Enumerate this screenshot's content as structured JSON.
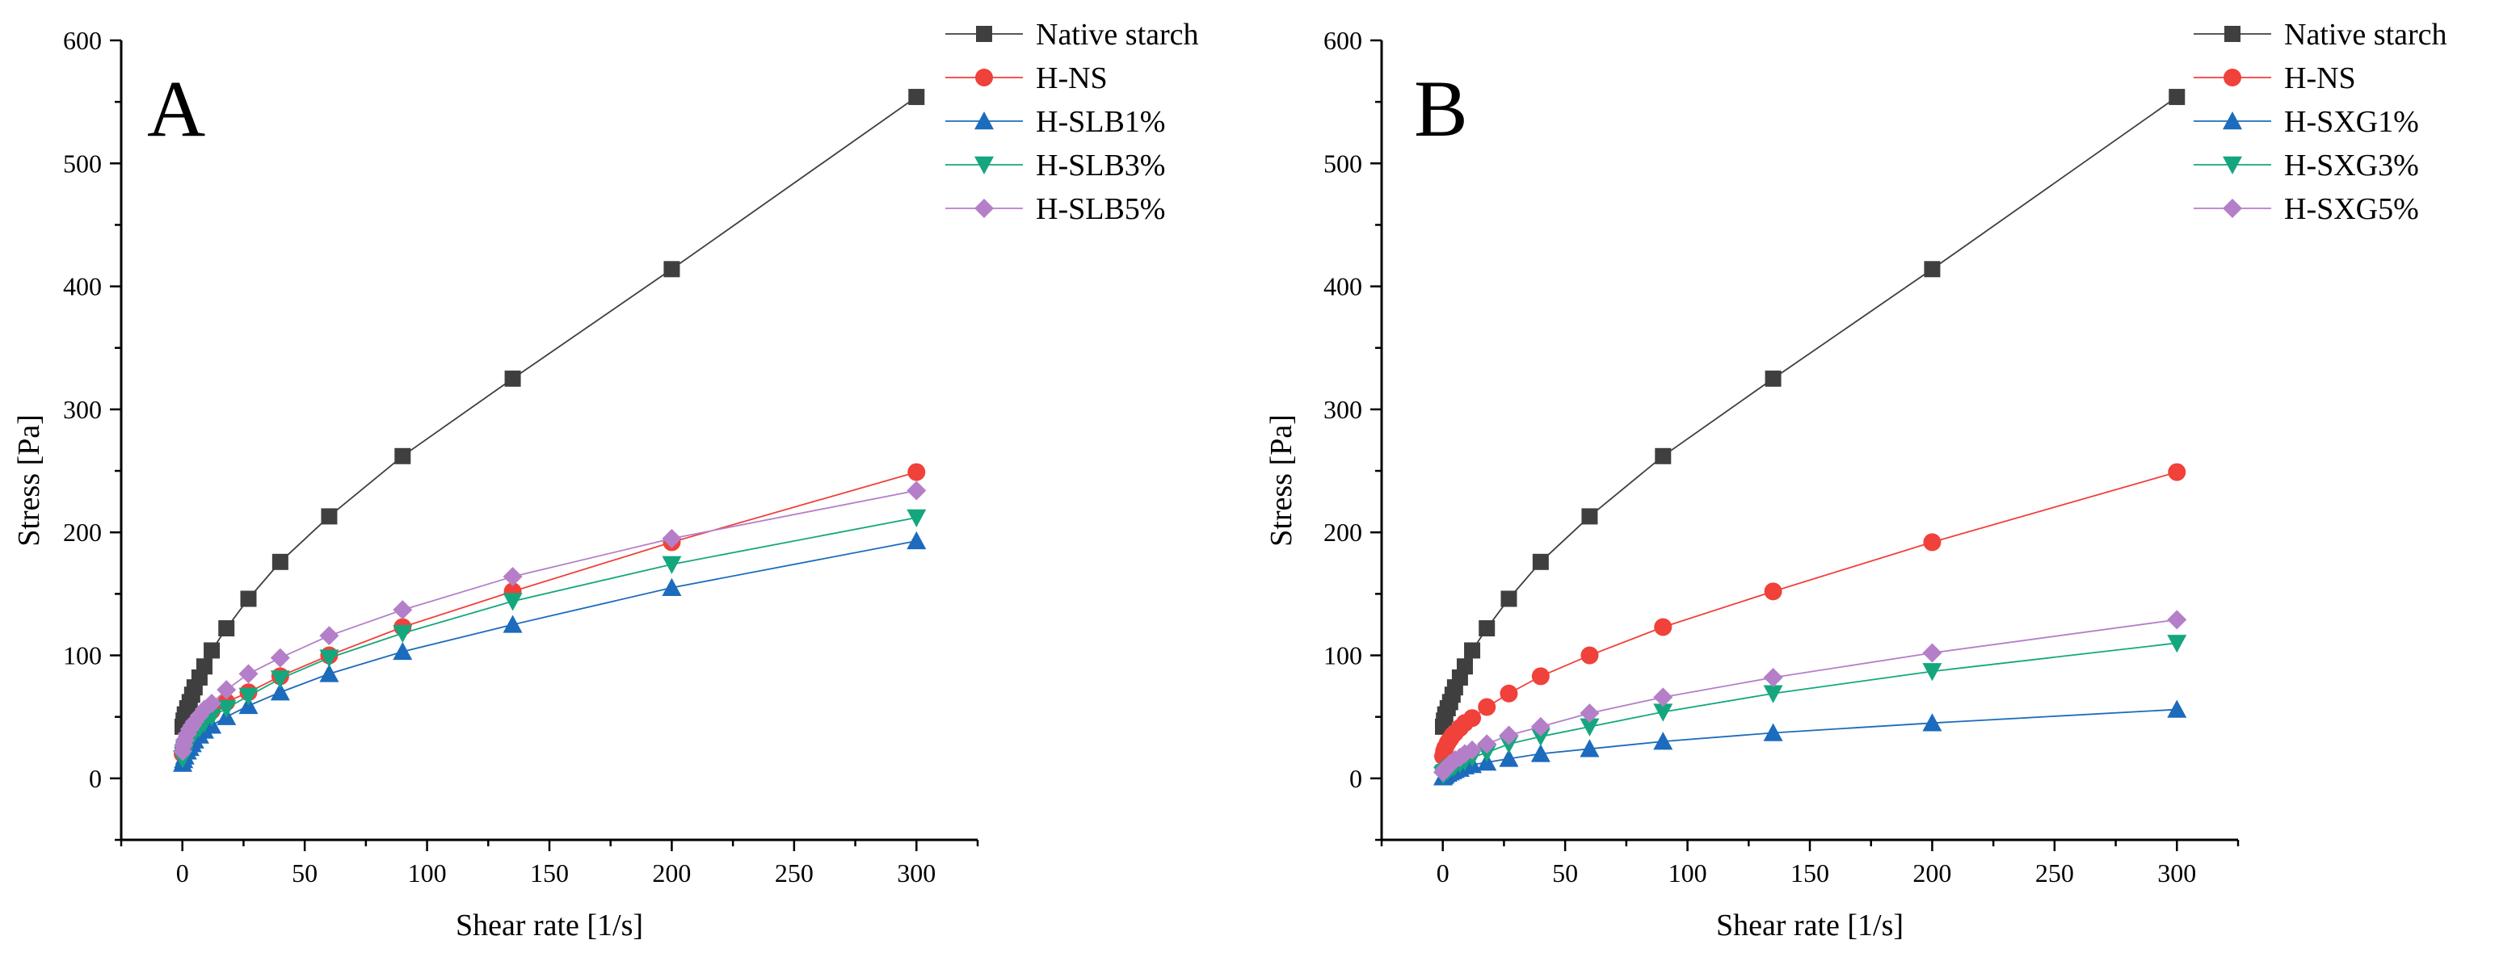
{
  "chart_data": [
    {
      "type": "line",
      "panel_label": "A",
      "xlabel": "Shear rate [1/s]",
      "ylabel": "Stress [Pa]",
      "xlim": [
        -25,
        325
      ],
      "ylim": [
        -50,
        600
      ],
      "xticks": [
        0,
        50,
        100,
        150,
        200,
        250,
        300
      ],
      "yticks": [
        0,
        100,
        200,
        300,
        400,
        500,
        600
      ],
      "legend_position": "top-right",
      "series": [
        {
          "name": "Native starch",
          "color": "#3f3f3f",
          "marker": "square",
          "x": [
            0.1,
            0.5,
            1,
            2,
            3,
            4,
            5,
            7,
            9,
            12,
            18,
            27,
            40,
            60,
            90,
            135,
            200,
            300
          ],
          "y": [
            42,
            47,
            52,
            57,
            62,
            68,
            74,
            82,
            91,
            104,
            122,
            146,
            176,
            213,
            262,
            325,
            414,
            554
          ]
        },
        {
          "name": "H-NS",
          "color": "#f0413a",
          "marker": "circle",
          "x": [
            0.1,
            0.5,
            1,
            2,
            3,
            4,
            5,
            7,
            9,
            12,
            18,
            27,
            40,
            60,
            90,
            135,
            200,
            300
          ],
          "y": [
            20,
            24,
            28,
            33,
            37,
            40,
            43,
            47,
            51,
            55,
            62,
            70,
            83,
            100,
            123,
            152,
            192,
            249
          ]
        },
        {
          "name": "H-SLB1%",
          "color": "#1c6bbd",
          "marker": "triangle-up",
          "x": [
            0.1,
            0.5,
            1,
            2,
            3,
            4,
            5,
            7,
            9,
            12,
            18,
            27,
            40,
            60,
            90,
            135,
            200,
            300
          ],
          "y": [
            12,
            15,
            18,
            22,
            25,
            28,
            31,
            35,
            39,
            43,
            50,
            59,
            70,
            85,
            103,
            125,
            155,
            193
          ]
        },
        {
          "name": "H-SLB3%",
          "color": "#14a77e",
          "marker": "triangle-down",
          "x": [
            0.1,
            0.5,
            1,
            2,
            3,
            4,
            5,
            7,
            9,
            12,
            18,
            27,
            40,
            60,
            90,
            135,
            200,
            300
          ],
          "y": [
            16,
            19,
            23,
            27,
            31,
            34,
            37,
            41,
            45,
            50,
            57,
            67,
            81,
            98,
            118,
            144,
            174,
            212
          ]
        },
        {
          "name": "H-SLB5%",
          "color": "#b47fc8",
          "marker": "diamond",
          "x": [
            0.1,
            0.5,
            1,
            2,
            3,
            4,
            5,
            7,
            9,
            12,
            18,
            27,
            40,
            60,
            90,
            135,
            200,
            300
          ],
          "y": [
            22,
            27,
            31,
            36,
            40,
            43,
            46,
            51,
            56,
            61,
            72,
            85,
            98,
            116,
            137,
            164,
            195,
            234
          ]
        }
      ]
    },
    {
      "type": "line",
      "panel_label": "B",
      "xlabel": "Shear rate [1/s]",
      "ylabel": "Stress [Pa]",
      "xlim": [
        -25,
        325
      ],
      "ylim": [
        -50,
        600
      ],
      "xticks": [
        0,
        50,
        100,
        150,
        200,
        250,
        300
      ],
      "yticks": [
        0,
        100,
        200,
        300,
        400,
        500,
        600
      ],
      "legend_position": "top-right",
      "series": [
        {
          "name": "Native starch",
          "color": "#3f3f3f",
          "marker": "square",
          "x": [
            0.1,
            0.5,
            1,
            2,
            3,
            4,
            5,
            7,
            9,
            12,
            18,
            27,
            40,
            60,
            90,
            135,
            200,
            300
          ],
          "y": [
            42,
            47,
            52,
            57,
            62,
            68,
            74,
            82,
            91,
            104,
            122,
            146,
            176,
            213,
            262,
            325,
            414,
            554
          ]
        },
        {
          "name": "H-NS",
          "color": "#f0413a",
          "marker": "circle",
          "x": [
            0.1,
            0.5,
            1,
            2,
            3,
            4,
            5,
            7,
            9,
            12,
            18,
            27,
            40,
            60,
            90,
            135,
            200,
            300
          ],
          "y": [
            18,
            22,
            25,
            29,
            32,
            35,
            37,
            41,
            45,
            49,
            58,
            69,
            83,
            100,
            123,
            152,
            192,
            249
          ]
        },
        {
          "name": "H-SXG1%",
          "color": "#1c6bbd",
          "marker": "triangle-up",
          "x": [
            0.1,
            0.5,
            1,
            2,
            3,
            4,
            5,
            7,
            9,
            12,
            18,
            27,
            40,
            60,
            90,
            135,
            200,
            300
          ],
          "y": [
            1,
            2,
            3,
            4,
            5,
            6,
            7,
            8,
            10,
            11,
            13,
            16,
            20,
            24,
            30,
            37,
            45,
            56
          ]
        },
        {
          "name": "H-SXG3%",
          "color": "#14a77e",
          "marker": "triangle-down",
          "x": [
            0.1,
            0.5,
            1,
            2,
            3,
            4,
            5,
            7,
            9,
            12,
            18,
            27,
            40,
            60,
            90,
            135,
            200,
            300
          ],
          "y": [
            3,
            4,
            5,
            6,
            8,
            9,
            10,
            12,
            14,
            17,
            21,
            28,
            34,
            42,
            54,
            69,
            87,
            110
          ]
        },
        {
          "name": "H-SXG5%",
          "color": "#b47fc8",
          "marker": "diamond",
          "x": [
            0.1,
            0.5,
            1,
            2,
            3,
            4,
            5,
            7,
            9,
            12,
            18,
            27,
            40,
            60,
            90,
            135,
            200,
            300
          ],
          "y": [
            5,
            6,
            8,
            10,
            12,
            13,
            15,
            17,
            20,
            23,
            28,
            35,
            42,
            53,
            66,
            82,
            102,
            129
          ]
        }
      ]
    }
  ]
}
